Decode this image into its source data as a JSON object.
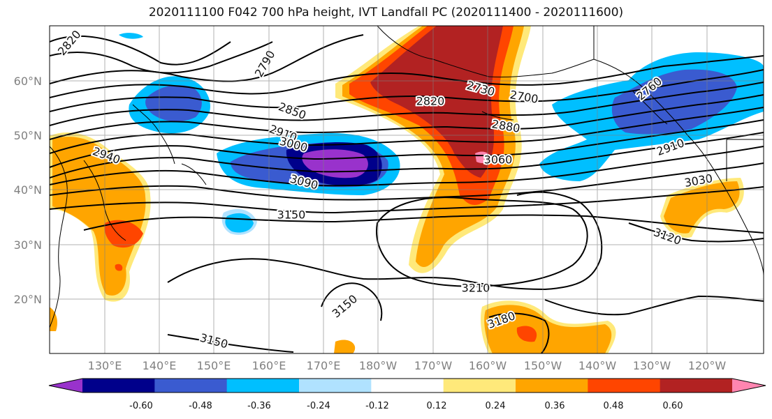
{
  "title": "2020111100 F042 700 hPa height, IVT Landfall PC (2020111400 - 2020111600)",
  "lat_ticks": [
    "60°N",
    "50°N",
    "40°N",
    "30°N",
    "20°N"
  ],
  "lon_ticks": [
    "130°E",
    "140°E",
    "150°E",
    "160°E",
    "170°E",
    "180°W",
    "170°W",
    "160°W",
    "150°W",
    "140°W",
    "130°W",
    "120°W"
  ],
  "colorbar": {
    "ticks": [
      "-0.60",
      "-0.48",
      "-0.36",
      "-0.24",
      "-0.12",
      "0.12",
      "0.24",
      "0.36",
      "0.48",
      "0.60"
    ],
    "colors": [
      "#9932CC",
      "#00008B",
      "#3A5BD0",
      "#00BFFF",
      "#B0E2FF",
      "#FFFFFF",
      "#FFE97A",
      "#FFA500",
      "#FF4500",
      "#B22222",
      "#FF85B0"
    ]
  },
  "contour_labels": [
    "2820",
    "2790",
    "2850",
    "2910",
    "3000",
    "3090",
    "2730",
    "2820",
    "2700",
    "2880",
    "3060",
    "2940",
    "2760",
    "2910",
    "3030",
    "3150",
    "3120",
    "3210",
    "3150",
    "3180",
    "3150"
  ]
}
